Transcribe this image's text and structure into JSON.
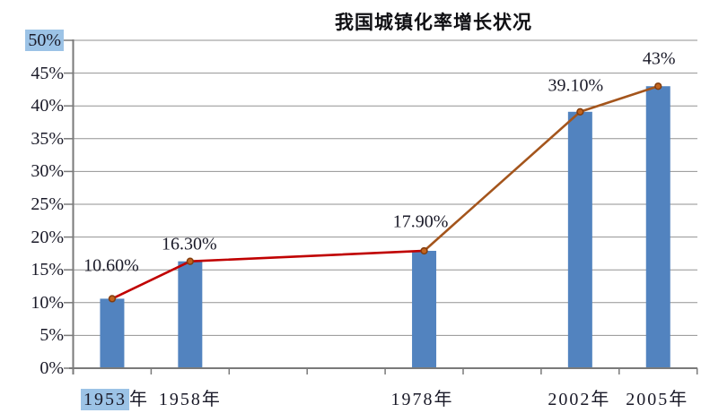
{
  "chart_data": {
    "type": "bar",
    "line_overlay": true,
    "title": "我国城镇化率增长状况",
    "categories": [
      "1953年",
      "1958年",
      "1978年",
      "2002年",
      "2005年"
    ],
    "values": [
      10.6,
      16.3,
      17.9,
      39.1,
      43
    ],
    "value_labels": [
      "10.60%",
      "16.30%",
      "17.90%",
      "39.10%",
      "43%"
    ],
    "xlabel": "",
    "ylabel": "",
    "ylim": [
      0,
      50
    ],
    "ytick_step": 5,
    "ytick_labels": [
      "0%",
      "5%",
      "10%",
      "15%",
      "20%",
      "25%",
      "30%",
      "35%",
      "40%",
      "45%",
      "50%"
    ],
    "grid": true,
    "legend": "none",
    "colors": {
      "bar": "#5283BF",
      "line_segment_colors": [
        "#C00000",
        "#C00000",
        "#A4551C",
        "#A4551C"
      ],
      "marker_fill": "#C2641E",
      "marker_stroke": "#833D0D",
      "axis": "#7A7A7A",
      "grid_color": "#929292",
      "text": "#1A1A28",
      "selection_highlight": "#9CC3E6"
    },
    "selection_highlighted_texts": [
      "50%",
      "1953"
    ]
  }
}
